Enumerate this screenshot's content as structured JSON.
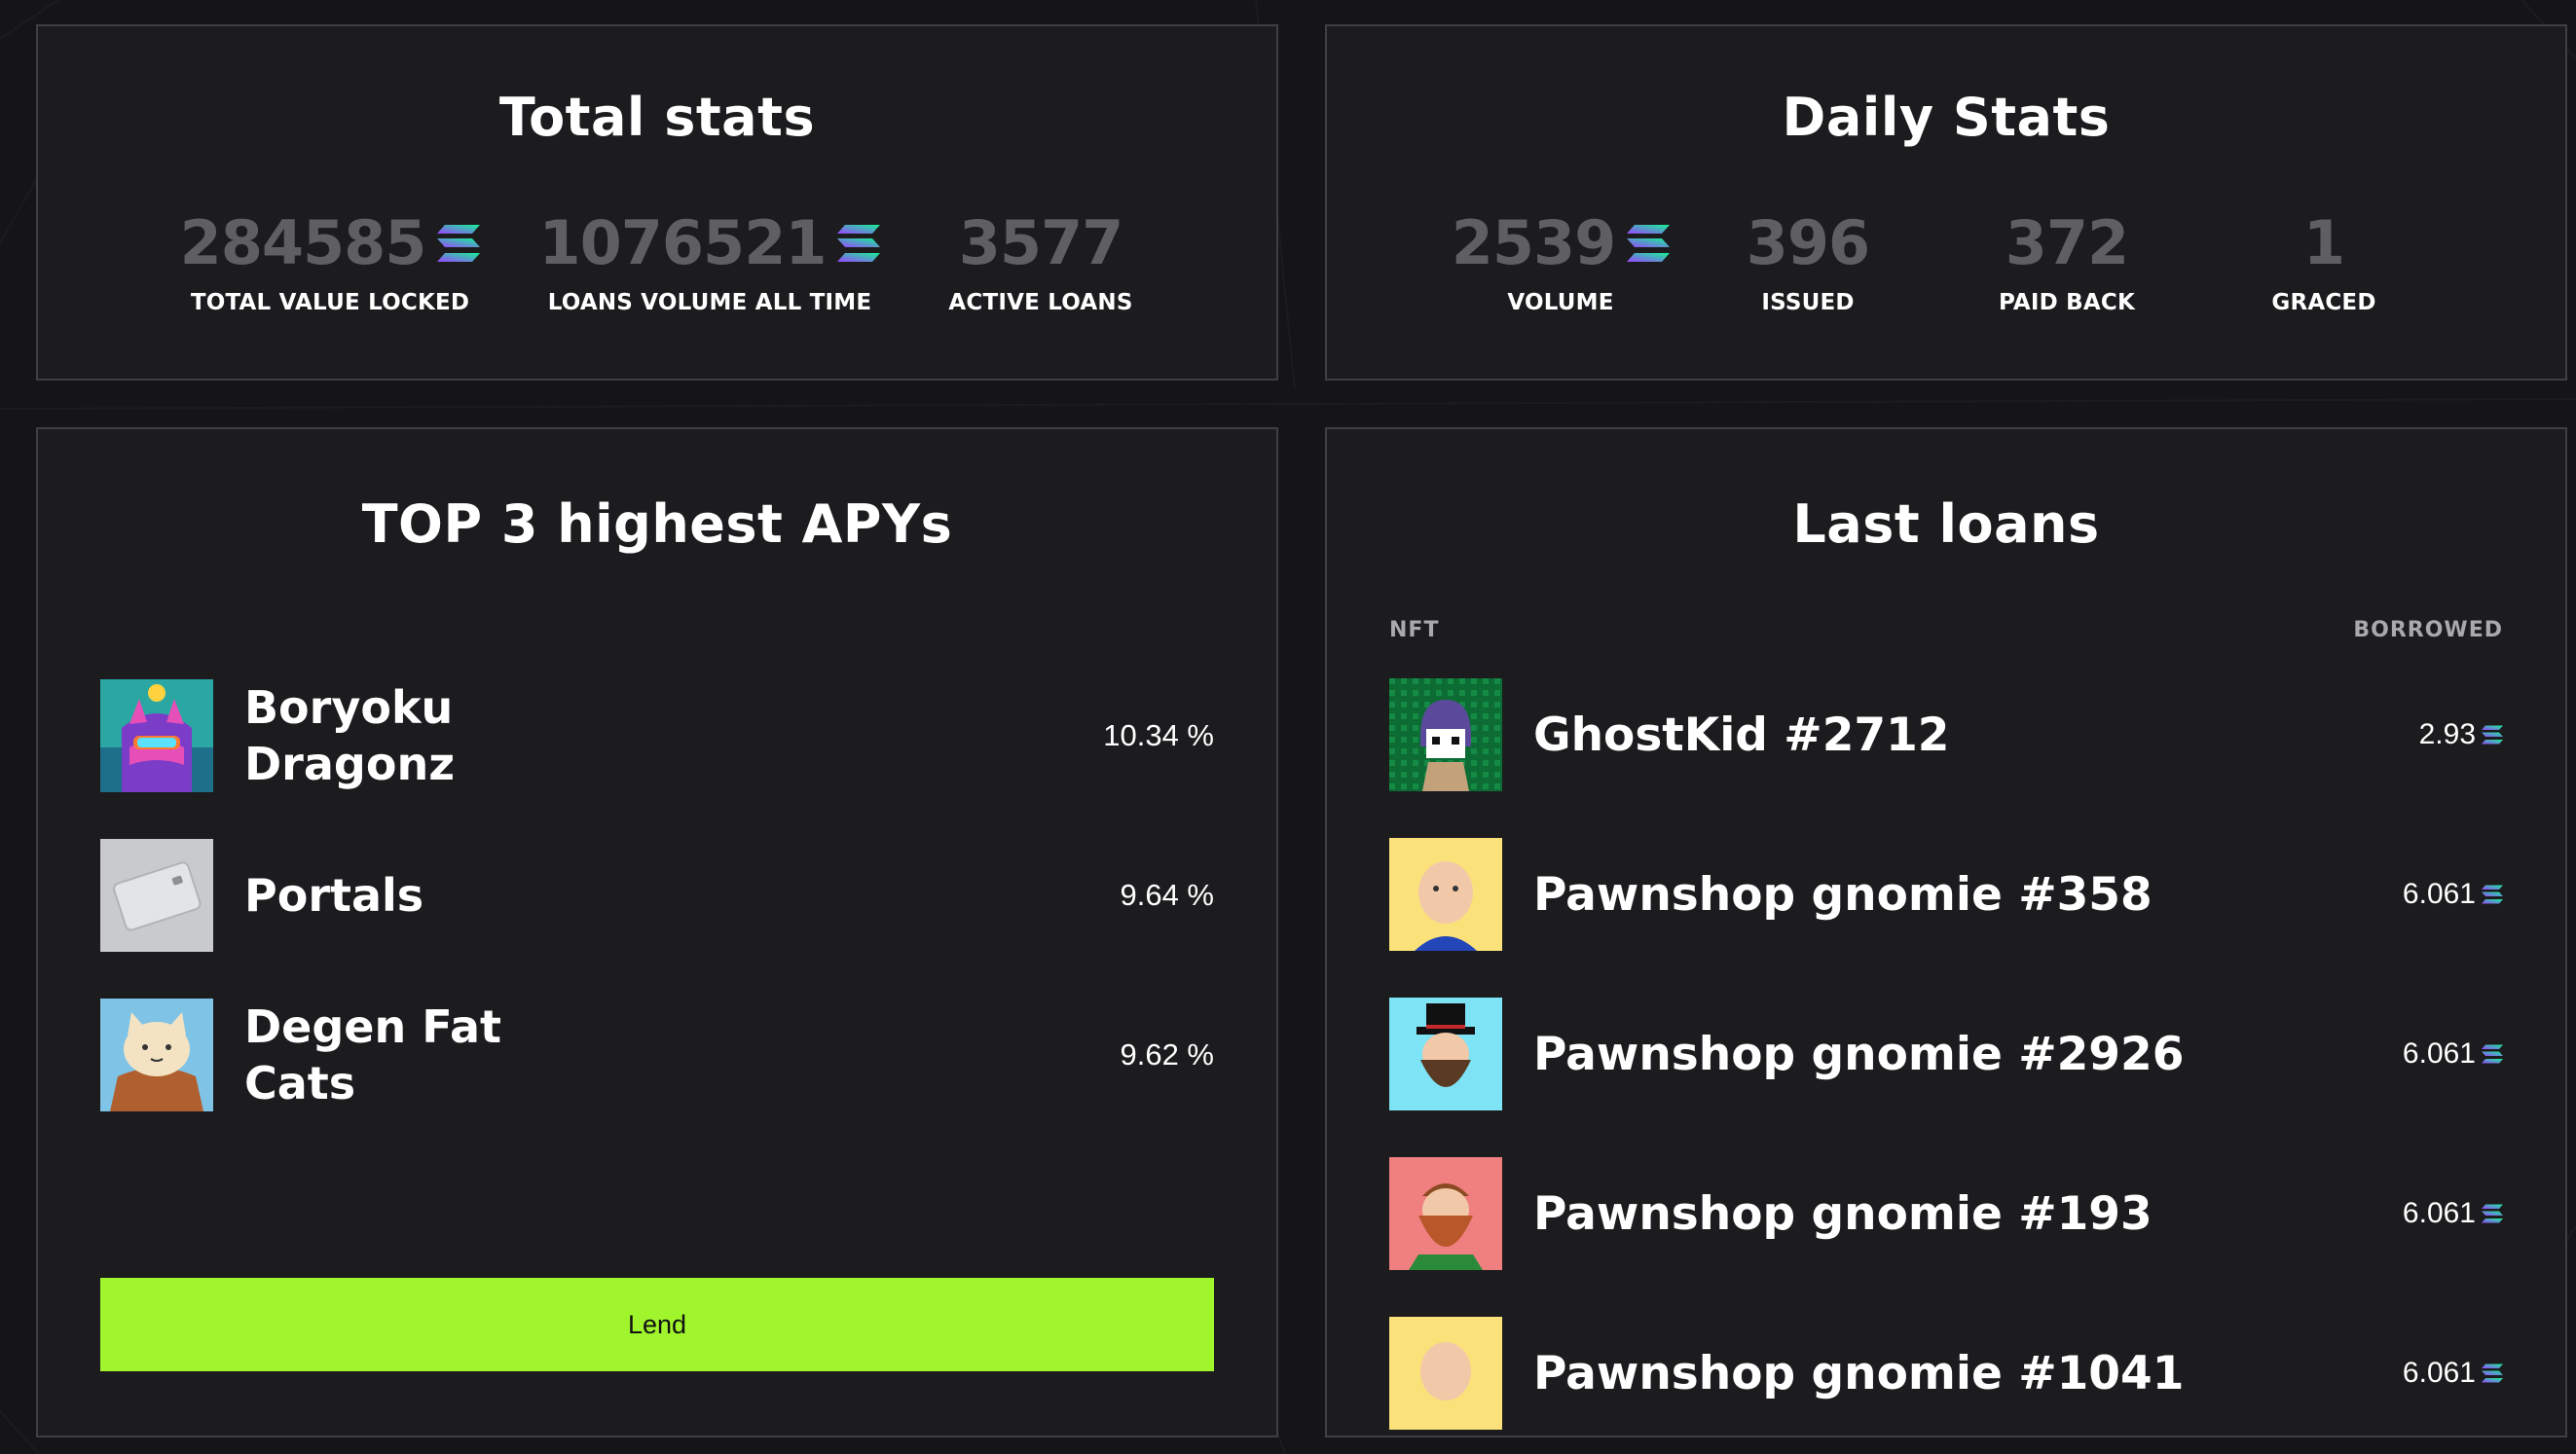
{
  "total_stats": {
    "title": "Total stats",
    "items": [
      {
        "value": "284585",
        "label": "TOTAL VALUE LOCKED",
        "currency_icon": "solana-icon"
      },
      {
        "value": "1076521",
        "label": "LOANS VOLUME ALL TIME",
        "currency_icon": "solana-icon"
      },
      {
        "value": "3577",
        "label": "ACTIVE LOANS"
      }
    ]
  },
  "daily_stats": {
    "title": "Daily Stats",
    "items": [
      {
        "value": "2539",
        "label": "VOLUME",
        "currency_icon": "solana-icon"
      },
      {
        "value": "396",
        "label": "ISSUED"
      },
      {
        "value": "372",
        "label": "PAID BACK"
      },
      {
        "value": "1",
        "label": "GRACED"
      }
    ]
  },
  "top_apys": {
    "title": "TOP 3 highest APYs",
    "rows": [
      {
        "name": "Boryoku Dragonz",
        "apy": "10.34 %"
      },
      {
        "name": "Portals",
        "apy": "9.64 %"
      },
      {
        "name": "Degen Fat Cats",
        "apy": "9.62 %"
      }
    ],
    "lend_label": "Lend"
  },
  "last_loans": {
    "title": "Last loans",
    "col_nft": "NFT",
    "col_borrowed": "BORROWED",
    "rows": [
      {
        "name": "GhostKid #2712",
        "amount": "2.93"
      },
      {
        "name": "Pawnshop gnomie #358",
        "amount": "6.061"
      },
      {
        "name": "Pawnshop gnomie #2926",
        "amount": "6.061"
      },
      {
        "name": "Pawnshop gnomie #193",
        "amount": "6.061"
      },
      {
        "name": "Pawnshop gnomie #1041",
        "amount": "6.061"
      }
    ]
  },
  "colors": {
    "background": "#151518",
    "panel": "#1c1c1f",
    "border": "#3f3f44",
    "stat_value": "#5e5e63",
    "lend_button": "#a0f52d"
  }
}
